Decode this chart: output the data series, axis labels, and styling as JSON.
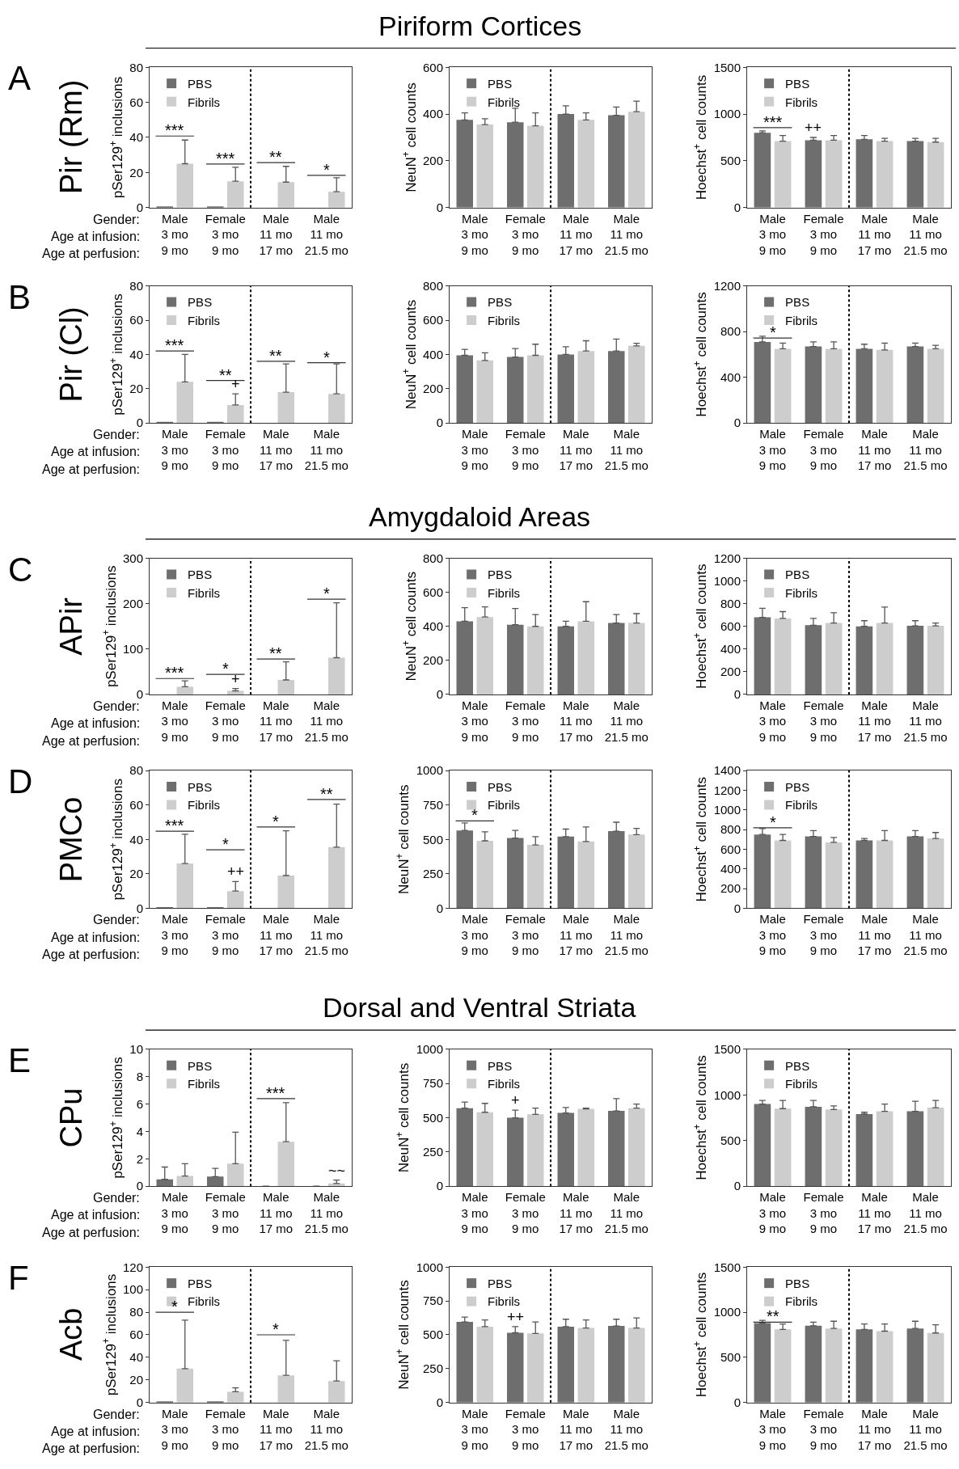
{
  "chart_data": [
    {
      "type": "bar",
      "ylabel": "pSer129$^{+}$ inclusions",
      "categories": [
        "Male\n3 mo\n9 mo",
        "Female\n3 mo\n9 mo",
        "Male\n11 mo\n17 mo",
        "Male\n11 mo\n21.5 mo"
      ],
      "ylim": [
        0,
        80
      ],
      "yticks": [
        0,
        20,
        40,
        60,
        80
      ],
      "legend": "top left",
      "series": [
        {
          "name": "PBS",
          "color": "#6e6e6e",
          "values": [
            0.5,
            0.2,
            0,
            0
          ]
        },
        {
          "name": "Fibrils",
          "color": "#cdcdcd",
          "values": [
            25,
            15,
            14.5,
            9
          ],
          "errors": [
            [
              25,
              38.5
            ],
            [
              15,
              23
            ],
            [
              14.5,
              23.5
            ],
            [
              9,
              17
            ]
          ]
        }
      ],
      "annotations": [
        "A",
        "Pir (Rm)",
        "Gender:",
        "Age at infusion:",
        "Age at perfusion:",
        "***",
        "***",
        "**",
        "*"
      ]
    },
    {
      "type": "bar",
      "title": "Piriform Cortices",
      "ylabel": "NeuN$^{+}$ cell counts",
      "categories": [
        "Male\n3 mo\n9 mo",
        "Female\n3 mo\n9 mo",
        "Male\n11 mo\n17 mo",
        "Male\n11 mo\n21.5 mo"
      ],
      "ylim": [
        0,
        600
      ],
      "yticks": [
        0,
        200,
        400,
        600
      ],
      "legend": "top left",
      "series": [
        {
          "name": "PBS",
          "color": "#6e6e6e",
          "values": [
            375,
            365,
            400,
            395
          ],
          "errors": [
            [
              375,
              405
            ],
            [
              365,
              425
            ],
            [
              400,
              435
            ],
            [
              395,
              430
            ]
          ]
        },
        {
          "name": "Fibrils",
          "color": "#cdcdcd",
          "values": [
            355,
            350,
            375,
            410
          ],
          "errors": [
            [
              355,
              380
            ],
            [
              350,
              405
            ],
            [
              375,
              405
            ],
            [
              410,
              455
            ]
          ]
        }
      ]
    },
    {
      "type": "bar",
      "ylabel": "Hoechst$^{+}$ cell counts",
      "categories": [
        "Male\n3 mo\n9 mo",
        "Female\n3 mo\n9 mo",
        "Male\n11 mo\n17 mo",
        "Male\n11 mo\n21.5 mo"
      ],
      "ylim": [
        0,
        1500
      ],
      "yticks": [
        0,
        500,
        1000,
        1500
      ],
      "legend": "top left",
      "series": [
        {
          "name": "PBS",
          "color": "#6e6e6e",
          "values": [
            800,
            720,
            730,
            710
          ],
          "errors": [
            [
              800,
              820
            ],
            [
              720,
              750
            ],
            [
              730,
              770
            ],
            [
              710,
              740
            ]
          ],
          "value_labels": [
            null,
            "++",
            null,
            null
          ]
        },
        {
          "name": "Fibrils",
          "color": "#cdcdcd",
          "values": [
            710,
            720,
            710,
            700
          ],
          "errors": [
            [
              710,
              770
            ],
            [
              720,
              770
            ],
            [
              710,
              740
            ],
            [
              700,
              740
            ]
          ]
        }
      ],
      "annotations": [
        "***"
      ]
    },
    {
      "type": "bar",
      "ylabel": "pSer129$^{+}$ inclusions",
      "categories": [
        "Male\n3 mo\n9 mo",
        "Female\n3 mo\n9 mo",
        "Male\n11 mo\n17 mo",
        "Male\n11 mo\n21.5 mo"
      ],
      "ylim": [
        0,
        80
      ],
      "yticks": [
        0,
        20,
        40,
        60,
        80
      ],
      "legend": "top left",
      "series": [
        {
          "name": "PBS",
          "color": "#6e6e6e",
          "values": [
            0.5,
            0.5,
            0,
            0
          ]
        },
        {
          "name": "Fibrils",
          "color": "#cdcdcd",
          "values": [
            24,
            10.5,
            18,
            17
          ],
          "errors": [
            [
              24,
              40
            ],
            [
              10.5,
              17
            ],
            [
              18,
              34.5
            ],
            [
              17,
              34.5
            ]
          ],
          "value_labels": [
            null,
            "+",
            null,
            null
          ]
        }
      ],
      "annotations": [
        "B",
        "Pir (Cl)",
        "Gender:",
        "Age at infusion:",
        "Age at perfusion:",
        "***",
        "**",
        "**",
        "*"
      ]
    },
    {
      "type": "bar",
      "ylabel": "NeuN$^{+}$ cell counts",
      "categories": [
        "Male\n3 mo\n9 mo",
        "Female\n3 mo\n9 mo",
        "Male\n11 mo\n17 mo",
        "Male\n11 mo\n21.5 mo"
      ],
      "ylim": [
        0,
        800
      ],
      "yticks": [
        0,
        200,
        400,
        600,
        800
      ],
      "legend": "top left",
      "series": [
        {
          "name": "PBS",
          "color": "#6e6e6e",
          "values": [
            395,
            385,
            400,
            420
          ],
          "errors": [
            [
              395,
              430
            ],
            [
              385,
              435
            ],
            [
              400,
              445
            ],
            [
              420,
              490
            ]
          ]
        },
        {
          "name": "Fibrils",
          "color": "#cdcdcd",
          "values": [
            365,
            395,
            420,
            450
          ],
          "errors": [
            [
              365,
              410
            ],
            [
              395,
              460
            ],
            [
              420,
              480
            ],
            [
              450,
              465
            ]
          ]
        }
      ]
    },
    {
      "type": "bar",
      "ylabel": "Hoechst$^{+}$ cell counts",
      "categories": [
        "Male\n3 mo\n9 mo",
        "Female\n3 mo\n9 mo",
        "Male\n11 mo\n17 mo",
        "Male\n11 mo\n21.5 mo"
      ],
      "ylim": [
        0,
        1200
      ],
      "yticks": [
        0,
        400,
        800,
        1200
      ],
      "legend": "top left",
      "series": [
        {
          "name": "PBS",
          "color": "#6e6e6e",
          "values": [
            710,
            670,
            650,
            670
          ],
          "errors": [
            [
              710,
              760
            ],
            [
              670,
              710
            ],
            [
              650,
              690
            ],
            [
              670,
              700
            ]
          ]
        },
        {
          "name": "Fibrils",
          "color": "#cdcdcd",
          "values": [
            650,
            650,
            640,
            650
          ],
          "errors": [
            [
              650,
              700
            ],
            [
              650,
              710
            ],
            [
              640,
              700
            ],
            [
              650,
              680
            ]
          ]
        }
      ],
      "annotations": [
        "*"
      ]
    },
    {
      "type": "bar",
      "ylabel": "pSer129$^{+}$ inclusions",
      "categories": [
        "Male\n3 mo\n9 mo",
        "Female\n3 mo\n9 mo",
        "Male\n11 mo\n17 mo",
        "Male\n11 mo\n21.5 mo"
      ],
      "ylim": [
        0,
        300
      ],
      "yticks": [
        0,
        100,
        200,
        300
      ],
      "legend": "top left",
      "series": [
        {
          "name": "PBS",
          "color": "#6e6e6e",
          "values": [
            0,
            0,
            0,
            0
          ]
        },
        {
          "name": "Fibrils",
          "color": "#cdcdcd",
          "values": [
            17,
            8,
            32,
            81
          ],
          "errors": [
            [
              17,
              30
            ],
            [
              8,
              13
            ],
            [
              32,
              72
            ],
            [
              81,
              202
            ]
          ],
          "value_labels": [
            null,
            "+",
            null,
            null
          ]
        }
      ],
      "annotations": [
        "C",
        "APir",
        "Gender:",
        "Age at infusion:",
        "Age at perfusion:",
        "***",
        "*",
        "**",
        "*"
      ]
    },
    {
      "type": "bar",
      "title": "Amygdaloid Areas",
      "ylabel": "NeuN$^{+}$ cell counts",
      "categories": [
        "Male\n3 mo\n9 mo",
        "Female\n3 mo\n9 mo",
        "Male\n11 mo\n17 mo",
        "Male\n11 mo\n21.5 mo"
      ],
      "ylim": [
        0,
        800
      ],
      "yticks": [
        0,
        200,
        400,
        600,
        800
      ],
      "legend": "top left",
      "series": [
        {
          "name": "PBS",
          "color": "#6e6e6e",
          "values": [
            430,
            410,
            400,
            420
          ],
          "errors": [
            [
              430,
              510
            ],
            [
              410,
              505
            ],
            [
              400,
              430
            ],
            [
              420,
              470
            ]
          ]
        },
        {
          "name": "Fibrils",
          "color": "#cdcdcd",
          "values": [
            455,
            400,
            430,
            420
          ],
          "errors": [
            [
              455,
              515
            ],
            [
              400,
              470
            ],
            [
              430,
              545
            ],
            [
              420,
              475
            ]
          ]
        }
      ]
    },
    {
      "type": "bar",
      "ylabel": "Hoechst$^{+}$ cell counts",
      "categories": [
        "Male\n3 mo\n9 mo",
        "Female\n3 mo\n9 mo",
        "Male\n11 mo\n17 mo",
        "Male\n11 mo\n21.5 mo"
      ],
      "ylim": [
        0,
        1200
      ],
      "yticks": [
        0,
        200,
        400,
        600,
        800,
        1000,
        1200
      ],
      "legend": "top left",
      "series": [
        {
          "name": "PBS",
          "color": "#6e6e6e",
          "values": [
            680,
            610,
            600,
            605
          ],
          "errors": [
            [
              680,
              760
            ],
            [
              610,
              670
            ],
            [
              600,
              650
            ],
            [
              605,
              650
            ]
          ]
        },
        {
          "name": "Fibrils",
          "color": "#cdcdcd",
          "values": [
            670,
            630,
            630,
            605
          ],
          "errors": [
            [
              670,
              730
            ],
            [
              630,
              720
            ],
            [
              630,
              770
            ],
            [
              605,
              630
            ]
          ]
        }
      ]
    },
    {
      "type": "bar",
      "ylabel": "pSer129$^{+}$ inclusions",
      "categories": [
        "Male\n3 mo\n9 mo",
        "Female\n3 mo\n9 mo",
        "Male\n11 mo\n17 mo",
        "Male\n11 mo\n21.5 mo"
      ],
      "ylim": [
        0,
        80
      ],
      "yticks": [
        0,
        20,
        40,
        60,
        80
      ],
      "legend": "top left",
      "series": [
        {
          "name": "PBS",
          "color": "#6e6e6e",
          "values": [
            0.3,
            0.5,
            0,
            0
          ]
        },
        {
          "name": "Fibrils",
          "color": "#cdcdcd",
          "values": [
            26,
            10,
            19,
            35.5
          ],
          "errors": [
            [
              26,
              43
            ],
            [
              10,
              15.5
            ],
            [
              19,
              45
            ],
            [
              35.5,
              60.5
            ]
          ],
          "value_labels": [
            null,
            "++",
            null,
            null
          ]
        }
      ],
      "annotations": [
        "D",
        "PMCo",
        "Gender:",
        "Age at infusion:",
        "Age at perfusion:",
        "***",
        "*",
        "*",
        "**"
      ]
    },
    {
      "type": "bar",
      "ylabel": "NeuN$^{+}$ cell counts",
      "categories": [
        "Male\n3 mo\n9 mo",
        "Female\n3 mo\n9 mo",
        "Male\n11 mo\n17 mo",
        "Male\n11 mo\n21.5 mo"
      ],
      "ylim": [
        0,
        1000
      ],
      "yticks": [
        0,
        250,
        500,
        750,
        1000
      ],
      "legend": "top left",
      "series": [
        {
          "name": "PBS",
          "color": "#6e6e6e",
          "values": [
            565,
            510,
            520,
            560
          ],
          "errors": [
            [
              565,
              620
            ],
            [
              510,
              565
            ],
            [
              520,
              575
            ],
            [
              560,
              625
            ]
          ]
        },
        {
          "name": "Fibrils",
          "color": "#cdcdcd",
          "values": [
            490,
            460,
            485,
            535
          ],
          "errors": [
            [
              490,
              555
            ],
            [
              460,
              520
            ],
            [
              485,
              590
            ],
            [
              535,
              580
            ]
          ]
        }
      ],
      "annotations": [
        "*"
      ]
    },
    {
      "type": "bar",
      "ylabel": "Hoechst$^{+}$ cell counts",
      "categories": [
        "Male\n3 mo\n9 mo",
        "Female\n3 mo\n9 mo",
        "Male\n11 mo\n17 mo",
        "Male\n11 mo\n21.5 mo"
      ],
      "ylim": [
        0,
        1400
      ],
      "yticks": [
        0,
        200,
        400,
        600,
        800,
        1000,
        1200,
        1400
      ],
      "legend": "top left",
      "series": [
        {
          "name": "PBS",
          "color": "#6e6e6e",
          "values": [
            750,
            730,
            690,
            730
          ],
          "errors": [
            [
              750,
              810
            ],
            [
              730,
              790
            ],
            [
              690,
              710
            ],
            [
              730,
              790
            ]
          ]
        },
        {
          "name": "Fibrils",
          "color": "#cdcdcd",
          "values": [
            690,
            670,
            690,
            710
          ],
          "errors": [
            [
              690,
              750
            ],
            [
              670,
              720
            ],
            [
              690,
              790
            ],
            [
              710,
              770
            ]
          ]
        }
      ],
      "annotations": [
        "*"
      ]
    },
    {
      "type": "bar",
      "ylabel": "pSer129$^{+}$ inclusions",
      "categories": [
        "Male\n3 mo\n9 mo",
        "Female\n3 mo\n9 mo",
        "Male\n11 mo\n17 mo",
        "Male\n11 mo\n21.5 mo"
      ],
      "ylim": [
        0,
        10
      ],
      "yticks": [
        0,
        2,
        4,
        6,
        8,
        10
      ],
      "legend": "top left",
      "series": [
        {
          "name": "PBS",
          "color": "#6e6e6e",
          "values": [
            0.5,
            0.7,
            0,
            0
          ],
          "errors": [
            [
              0.5,
              1.4
            ],
            [
              0.7,
              1.3
            ],
            null,
            null
          ]
        },
        {
          "name": "Fibrils",
          "color": "#cdcdcd",
          "values": [
            0.75,
            1.65,
            3.25,
            0.2
          ],
          "errors": [
            [
              0.75,
              1.65
            ],
            [
              1.65,
              3.95
            ],
            [
              3.25,
              6.1
            ],
            [
              0.2,
              0.45
            ]
          ],
          "value_labels": [
            null,
            null,
            null,
            "~~"
          ]
        }
      ],
      "annotations": [
        "E",
        "CPu",
        "Gender:",
        "Age at infusion:",
        "Age at perfusion:",
        "***"
      ]
    },
    {
      "type": "bar",
      "title": "Dorsal and Ventral Striata",
      "ylabel": "NeuN$^{+}$ cell counts",
      "categories": [
        "Male\n3 mo\n9 mo",
        "Female\n3 mo\n9 mo",
        "Male\n11 mo\n17 mo",
        "Male\n11 mo\n21.5 mo"
      ],
      "ylim": [
        0,
        1000
      ],
      "yticks": [
        0,
        250,
        500,
        750,
        1000
      ],
      "legend": "top left",
      "series": [
        {
          "name": "PBS",
          "color": "#6e6e6e",
          "values": [
            570,
            500,
            535,
            550
          ],
          "errors": [
            [
              570,
              615
            ],
            [
              500,
              555
            ],
            [
              535,
              575
            ],
            [
              550,
              640
            ]
          ],
          "value_labels": [
            null,
            "+",
            null,
            null
          ]
        },
        {
          "name": "Fibrils",
          "color": "#cdcdcd",
          "values": [
            540,
            525,
            565,
            570
          ],
          "errors": [
            [
              540,
              605
            ],
            [
              525,
              570
            ],
            [
              565,
              570
            ],
            [
              570,
              600
            ]
          ]
        }
      ]
    },
    {
      "type": "bar",
      "ylabel": "Hoechst$^{+}$ cell counts",
      "categories": [
        "Male\n3 mo\n9 mo",
        "Female\n3 mo\n9 mo",
        "Male\n11 mo\n17 mo",
        "Male\n11 mo\n21.5 mo"
      ],
      "ylim": [
        0,
        1500
      ],
      "yticks": [
        0,
        500,
        1000,
        1500
      ],
      "legend": "top left",
      "series": [
        {
          "name": "PBS",
          "color": "#6e6e6e",
          "values": [
            900,
            870,
            790,
            820
          ],
          "errors": [
            [
              900,
              940
            ],
            [
              870,
              940
            ],
            [
              790,
              810
            ],
            [
              820,
              930
            ]
          ]
        },
        {
          "name": "Fibrils",
          "color": "#cdcdcd",
          "values": [
            850,
            840,
            820,
            860
          ],
          "errors": [
            [
              850,
              940
            ],
            [
              840,
              880
            ],
            [
              820,
              900
            ],
            [
              860,
              940
            ]
          ]
        }
      ]
    },
    {
      "type": "bar",
      "ylabel": "pSer129$^{+}$ inclusions",
      "categories": [
        "Male\n3 mo\n9 mo",
        "Female\n3 mo\n9 mo",
        "Male\n11 mo\n17 mo",
        "Male\n11 mo\n21.5 mo"
      ],
      "ylim": [
        0,
        120
      ],
      "yticks": [
        0,
        20,
        40,
        60,
        80,
        100,
        120
      ],
      "legend": "top left",
      "series": [
        {
          "name": "PBS",
          "color": "#6e6e6e",
          "values": [
            0.5,
            0.5,
            0,
            0
          ]
        },
        {
          "name": "Fibrils",
          "color": "#cdcdcd",
          "values": [
            30,
            9.5,
            24,
            19
          ],
          "errors": [
            [
              30,
              73
            ],
            [
              9.5,
              13
            ],
            [
              24,
              55
            ],
            [
              19,
              37
            ]
          ]
        }
      ],
      "annotations": [
        "F",
        "Acb",
        "Gender:",
        "Age at infusion:",
        "Age at perfusion:",
        "*",
        "*"
      ]
    },
    {
      "type": "bar",
      "ylabel": "NeuN$^{+}$ cell counts",
      "categories": [
        "Male\n3 mo\n9 mo",
        "Female\n3 mo\n9 mo",
        "Male\n11 mo\n17 mo",
        "Male\n11 mo\n21.5 mo"
      ],
      "ylim": [
        0,
        1000
      ],
      "yticks": [
        0,
        250,
        500,
        750,
        1000
      ],
      "legend": "top left",
      "series": [
        {
          "name": "PBS",
          "color": "#6e6e6e",
          "values": [
            595,
            515,
            560,
            565
          ],
          "errors": [
            [
              595,
              630
            ],
            [
              515,
              560
            ],
            [
              560,
              615
            ],
            [
              565,
              615
            ]
          ],
          "value_labels": [
            null,
            "++",
            null,
            null
          ]
        },
        {
          "name": "Fibrils",
          "color": "#cdcdcd",
          "values": [
            560,
            510,
            550,
            550
          ],
          "errors": [
            [
              560,
              610
            ],
            [
              510,
              595
            ],
            [
              550,
              610
            ],
            [
              550,
              625
            ]
          ]
        }
      ]
    },
    {
      "type": "bar",
      "ylabel": "Hoechst$^{+}$ cell counts",
      "categories": [
        "Male\n3 mo\n9 mo",
        "Female\n3 mo\n9 mo",
        "Male\n11 mo\n17 mo",
        "Male\n11 mo\n21.5 mo"
      ],
      "ylim": [
        0,
        1500
      ],
      "yticks": [
        0,
        500,
        1000,
        1500
      ],
      "legend": "top left",
      "series": [
        {
          "name": "PBS",
          "color": "#6e6e6e",
          "values": [
            880,
            850,
            810,
            820
          ],
          "errors": [
            [
              880,
              910
            ],
            [
              850,
              890
            ],
            [
              810,
              870
            ],
            [
              820,
              900
            ]
          ]
        },
        {
          "name": "Fibrils",
          "color": "#cdcdcd",
          "values": [
            810,
            820,
            790,
            770
          ],
          "errors": [
            [
              810,
              870
            ],
            [
              820,
              900
            ],
            [
              790,
              870
            ],
            [
              770,
              860
            ]
          ]
        }
      ],
      "annotations": [
        "**"
      ]
    }
  ]
}
